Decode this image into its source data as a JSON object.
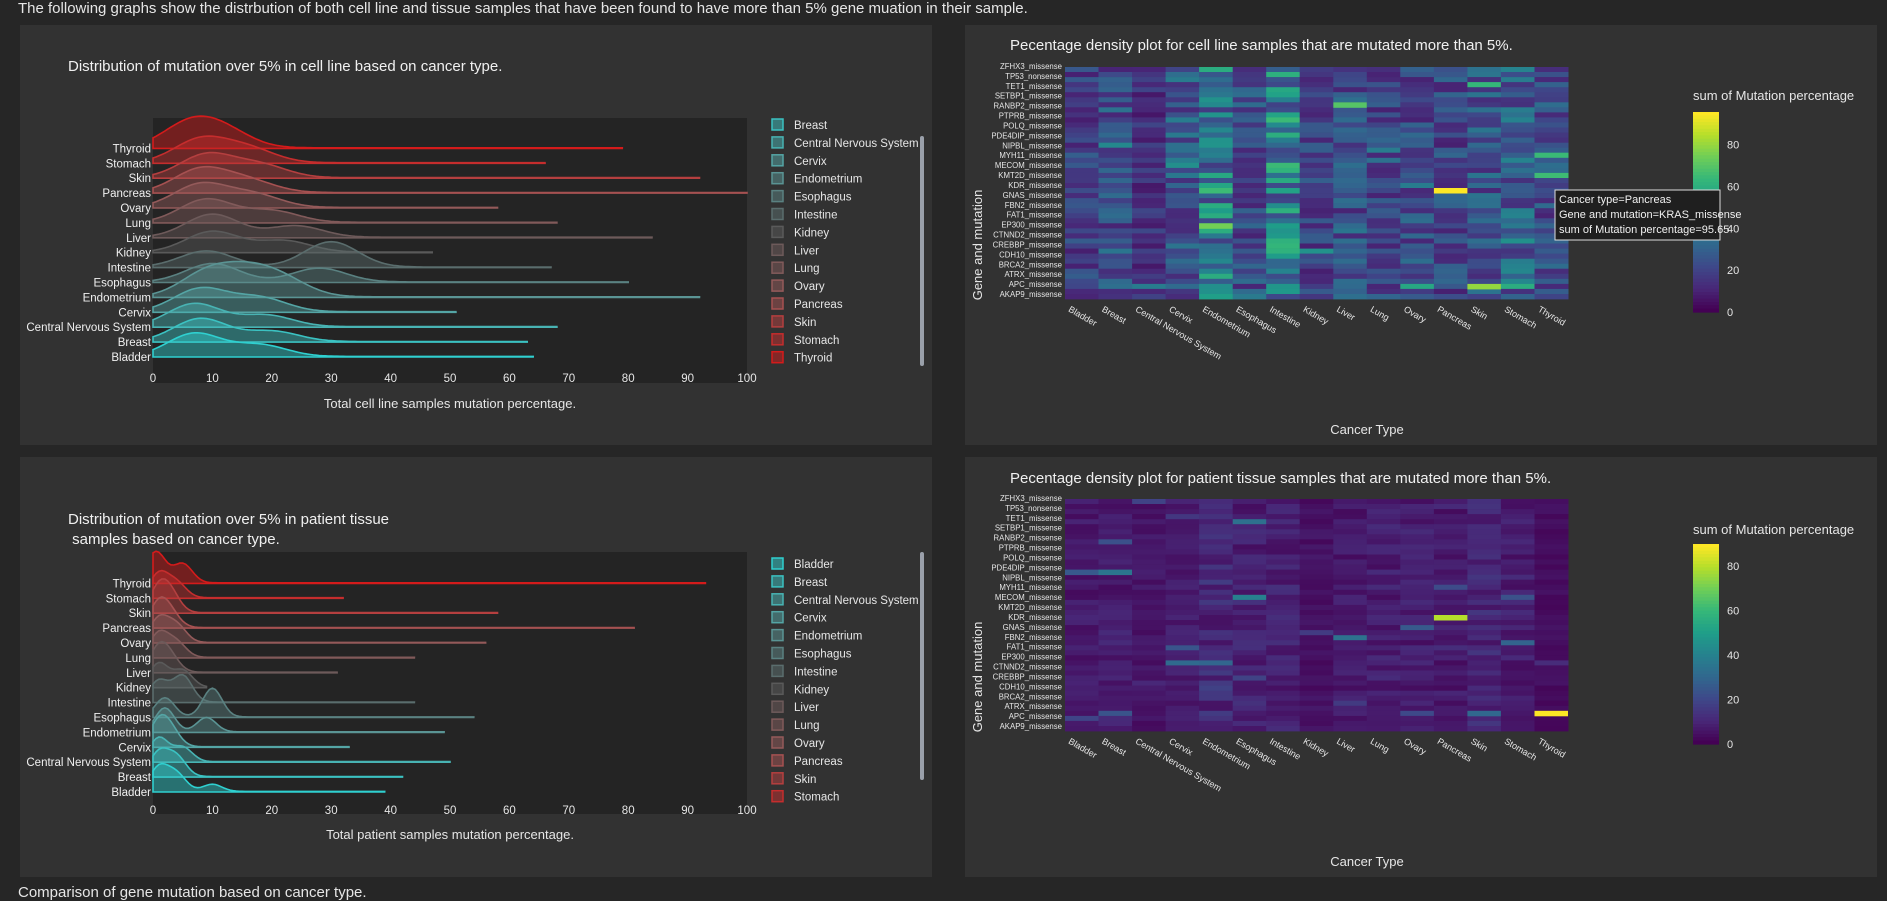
{
  "intro": "The following graphs show the distrbution of both cell line and tissue samples that have been found to have more than 5% gene muation in their sample.",
  "footer": "Comparison of gene mutation based on cancer type.",
  "colors": {
    "page_bg": "#262626",
    "panel_bg": "#323232",
    "plot_bg": "#242424",
    "cyan": "#2fd0d0",
    "red": "#d41b1b"
  },
  "ridge_cell": {
    "title": "Distribution of mutation over 5% in cell line based on cancer type.",
    "xlabel": "Total cell line samples mutation percentage.",
    "xticks": [
      "0",
      "10",
      "20",
      "30",
      "40",
      "50",
      "60",
      "70",
      "80",
      "90",
      "100"
    ],
    "legend": [
      "Breast",
      "Central Nervous System",
      "Cervix",
      "Endometrium",
      "Esophagus",
      "Intestine",
      "Kidney",
      "Liver",
      "Lung",
      "Ovary",
      "Pancreas",
      "Skin",
      "Stomach",
      "Thyroid"
    ]
  },
  "ridge_tissue": {
    "title_line1": "Distribution of mutation over 5% in patient tissue",
    "title_line2": " samples based on cancer type.",
    "xlabel": "Total patient samples mutation percentage.",
    "xticks": [
      "0",
      "10",
      "20",
      "30",
      "40",
      "50",
      "60",
      "70",
      "80",
      "90",
      "100"
    ],
    "legend": [
      "Bladder",
      "Breast",
      "Central Nervous System",
      "Cervix",
      "Endometrium",
      "Esophagus",
      "Intestine",
      "Kidney",
      "Liver",
      "Lung",
      "Ovary",
      "Pancreas",
      "Skin",
      "Stomach"
    ]
  },
  "heat_cell": {
    "title": "Pecentage density plot for cell line samples that are mutated more than 5%.",
    "ylabel": "Gene and mutation",
    "xlabel": "Cancer Type",
    "colorbar_title": "sum of Mutation percentage",
    "colorbar_ticks": [
      "80",
      "60",
      "40",
      "20",
      "0"
    ],
    "tooltip": [
      "Cancer type=Pancreas",
      "Gene and mutation=KRAS_missense",
      "sum of Mutation percentage=95.65"
    ]
  },
  "heat_tissue": {
    "title": "Pecentage density plot for patient tissue samples that are mutated more than 5%.",
    "ylabel": "Gene and mutation",
    "xlabel": "Cancer Type",
    "colorbar_title": "sum of Mutation percentage",
    "colorbar_ticks": [
      "80",
      "60",
      "40",
      "20",
      "0"
    ]
  },
  "chart_data": [
    {
      "type": "area",
      "title": "Distribution of mutation over 5% in cell line based on cancer type.",
      "xlabel": "Total cell line samples mutation percentage.",
      "xlim": [
        0,
        100
      ],
      "categories": [
        "Bladder",
        "Breast",
        "Central Nervous System",
        "Cervix",
        "Endometrium",
        "Esophagus",
        "Intestine",
        "Kidney",
        "Liver",
        "Lung",
        "Ovary",
        "Pancreas",
        "Skin",
        "Stomach",
        "Thyroid"
      ],
      "series": [
        {
          "name": "Bladder",
          "max": 64,
          "peaks": [
            [
              7,
              1.0
            ],
            [
              18,
              0.5
            ]
          ]
        },
        {
          "name": "Breast",
          "max": 63,
          "peaks": [
            [
              8,
              1.0
            ],
            [
              20,
              0.45
            ]
          ]
        },
        {
          "name": "Central Nervous System",
          "max": 68,
          "peaks": [
            [
              7,
              1.0
            ],
            [
              19,
              0.5
            ]
          ]
        },
        {
          "name": "Cervix",
          "max": 51,
          "peaks": [
            [
              8,
              1.0
            ],
            [
              18,
              0.6
            ]
          ]
        },
        {
          "name": "Endometrium",
          "max": 92,
          "peaks": [
            [
              9,
              1.0
            ],
            [
              16,
              0.95
            ],
            [
              22,
              0.65
            ]
          ]
        },
        {
          "name": "Esophagus",
          "max": 80,
          "peaks": [
            [
              10,
              0.8
            ],
            [
              28,
              0.6
            ]
          ]
        },
        {
          "name": "Intestine",
          "max": 67,
          "peaks": [
            [
              9,
              0.7
            ],
            [
              30,
              1.1
            ]
          ]
        },
        {
          "name": "Kidney",
          "max": 47,
          "peaks": [
            [
              10,
              0.9
            ],
            [
              22,
              0.5
            ]
          ]
        },
        {
          "name": "Liver",
          "max": 84,
          "peaks": [
            [
              10,
              1.0
            ],
            [
              24,
              0.5
            ]
          ]
        },
        {
          "name": "Lung",
          "max": 68,
          "peaks": [
            [
              9,
              1.0
            ],
            [
              20,
              0.5
            ]
          ]
        },
        {
          "name": "Ovary",
          "max": 58,
          "peaks": [
            [
              8,
              1.0
            ],
            [
              17,
              0.55
            ]
          ]
        },
        {
          "name": "Pancreas",
          "max": 100,
          "peaks": [
            [
              8,
              1.0
            ],
            [
              16,
              0.5
            ]
          ]
        },
        {
          "name": "Skin",
          "max": 92,
          "peaks": [
            [
              9,
              1.0
            ],
            [
              18,
              0.55
            ]
          ]
        },
        {
          "name": "Stomach",
          "max": 66,
          "peaks": [
            [
              8,
              1.0
            ],
            [
              16,
              0.6
            ]
          ]
        },
        {
          "name": "Thyroid",
          "max": 79,
          "peaks": [
            [
              6,
              1.0
            ],
            [
              12,
              0.7
            ]
          ]
        }
      ]
    },
    {
      "type": "area",
      "title": "Distribution of mutation over 5% in patient tissue samples based on cancer type.",
      "xlabel": "Total patient samples mutation percentage.",
      "xlim": [
        0,
        100
      ],
      "categories": [
        "Bladder",
        "Breast",
        "Central Nervous System",
        "Cervix",
        "Endometrium",
        "Esophagus",
        "Intestine",
        "Kidney",
        "Liver",
        "Lung",
        "Ovary",
        "Pancreas",
        "Skin",
        "Stomach",
        "Thyroid"
      ],
      "series": [
        {
          "name": "Bladder",
          "max": 39,
          "peaks": [
            [
              1,
              1.0
            ],
            [
              4,
              0.7
            ],
            [
              10,
              0.3
            ]
          ]
        },
        {
          "name": "Breast",
          "max": 42,
          "peaks": [
            [
              1,
              1.0
            ],
            [
              4,
              0.8
            ]
          ]
        },
        {
          "name": "Central Nervous System",
          "max": 50,
          "peaks": [
            [
              1,
              1.0
            ],
            [
              5,
              0.6
            ]
          ]
        },
        {
          "name": "Cervix",
          "max": 33,
          "peaks": [
            [
              1,
              1.0
            ],
            [
              3,
              0.6
            ]
          ]
        },
        {
          "name": "Endometrium",
          "max": 49,
          "peaks": [
            [
              2,
              1.0
            ],
            [
              9,
              0.6
            ]
          ]
        },
        {
          "name": "Esophagus",
          "max": 54,
          "peaks": [
            [
              2,
              0.8
            ],
            [
              10,
              1.2
            ]
          ]
        },
        {
          "name": "Intestine",
          "max": 44,
          "peaks": [
            [
              1,
              0.9
            ],
            [
              5,
              1.1
            ]
          ]
        },
        {
          "name": "Kidney",
          "max": 9,
          "peaks": [
            [
              1,
              1.0
            ],
            [
              5,
              0.7
            ]
          ]
        },
        {
          "name": "Liver",
          "max": 31,
          "peaks": [
            [
              1,
              1.0
            ],
            [
              3,
              0.5
            ]
          ]
        },
        {
          "name": "Lung",
          "max": 44,
          "peaks": [
            [
              1,
              1.0
            ],
            [
              4,
              0.6
            ]
          ]
        },
        {
          "name": "Ovary",
          "max": 56,
          "peaks": [
            [
              1,
              1.0
            ],
            [
              4,
              0.7
            ]
          ]
        },
        {
          "name": "Pancreas",
          "max": 81,
          "peaks": [
            [
              1,
              1.0
            ],
            [
              3,
              0.5
            ]
          ]
        },
        {
          "name": "Skin",
          "max": 58,
          "peaks": [
            [
              1,
              1.0
            ],
            [
              3,
              0.7
            ]
          ]
        },
        {
          "name": "Stomach",
          "max": 32,
          "peaks": [
            [
              1,
              1.0
            ],
            [
              4,
              0.6
            ]
          ]
        },
        {
          "name": "Thyroid",
          "max": 93,
          "peaks": [
            [
              0.5,
              1.3
            ],
            [
              5,
              0.8
            ]
          ]
        }
      ]
    },
    {
      "type": "heatmap",
      "title": "Pecentage density plot for cell line samples that are mutated more than 5%.",
      "xlabel": "Cancer Type",
      "ylabel": "Gene and mutation",
      "colorbar_title": "sum of Mutation percentage",
      "zlim": [
        0,
        95.65
      ],
      "x": [
        "Bladder",
        "Breast",
        "Central Nervous System",
        "Cervix",
        "Endometrium",
        "Esophagus",
        "Intestine",
        "Kidney",
        "Liver",
        "Lung",
        "Ovary",
        "Pancreas",
        "Skin",
        "Stomach",
        "Thyroid"
      ],
      "y_labels": [
        "AKAP9_missense",
        "APC_missense",
        "ATRX_missense",
        "BRCA2_missense",
        "CDH10_missense",
        "CREBBP_missense",
        "CTNND2_missense",
        "EP300_missense",
        "FAT1_missense",
        "FBN2_missense",
        "GNAS_missense",
        "KDR_missense",
        "KMT2D_missense",
        "MECOM_missense",
        "MYH11_missense",
        "NIPBL_missense",
        "PDE4DIP_missense",
        "POLQ_missense",
        "PTPRB_missense",
        "RANBP2_missense",
        "SETBP1_missense",
        "TET1_missense",
        "TP53_nonsense",
        "ZFHX3_missense"
      ],
      "highlight": {
        "x": "Pancreas",
        "y": "KRAS_missense",
        "z": 95.65
      },
      "column_mean": [
        18,
        22,
        14,
        26,
        38,
        22,
        42,
        18,
        22,
        20,
        22,
        20,
        24,
        28,
        22
      ]
    },
    {
      "type": "heatmap",
      "title": "Pecentage density plot for patient tissue samples that are mutated more than 5%.",
      "xlabel": "Cancer Type",
      "ylabel": "Gene and mutation",
      "colorbar_title": "sum of Mutation percentage",
      "zlim": [
        0,
        90
      ],
      "x": [
        "Bladder",
        "Breast",
        "Central Nervous System",
        "Cervix",
        "Endometrium",
        "Esophagus",
        "Intestine",
        "Kidney",
        "Liver",
        "Lung",
        "Ovary",
        "Pancreas",
        "Skin",
        "Stomach",
        "Thyroid"
      ],
      "y_labels": [
        "AKAP9_missense",
        "APC_missense",
        "ATRX_missense",
        "BRCA2_missense",
        "CDH10_missense",
        "CREBBP_missense",
        "CTNND2_missense",
        "EP300_missense",
        "FAT1_missense",
        "FBN2_missense",
        "GNAS_missense",
        "KDR_missense",
        "KMT2D_missense",
        "MECOM_missense",
        "MYH11_missense",
        "NIPBL_missense",
        "PDE4DIP_missense",
        "POLQ_missense",
        "PTPRB_missense",
        "RANBP2_missense",
        "SETBP1_missense",
        "TET1_missense",
        "TP53_nonsense",
        "ZFHX3_missense"
      ],
      "highlights": [
        {
          "x": "Pancreas",
          "row": "KMT2D_missense",
          "z": 80
        },
        {
          "x": "Thyroid",
          "row": "BRCA2_missense",
          "z": 90
        }
      ],
      "column_mean": [
        6,
        7,
        5,
        6,
        10,
        8,
        8,
        4,
        6,
        7,
        7,
        6,
        9,
        7,
        3
      ]
    }
  ]
}
